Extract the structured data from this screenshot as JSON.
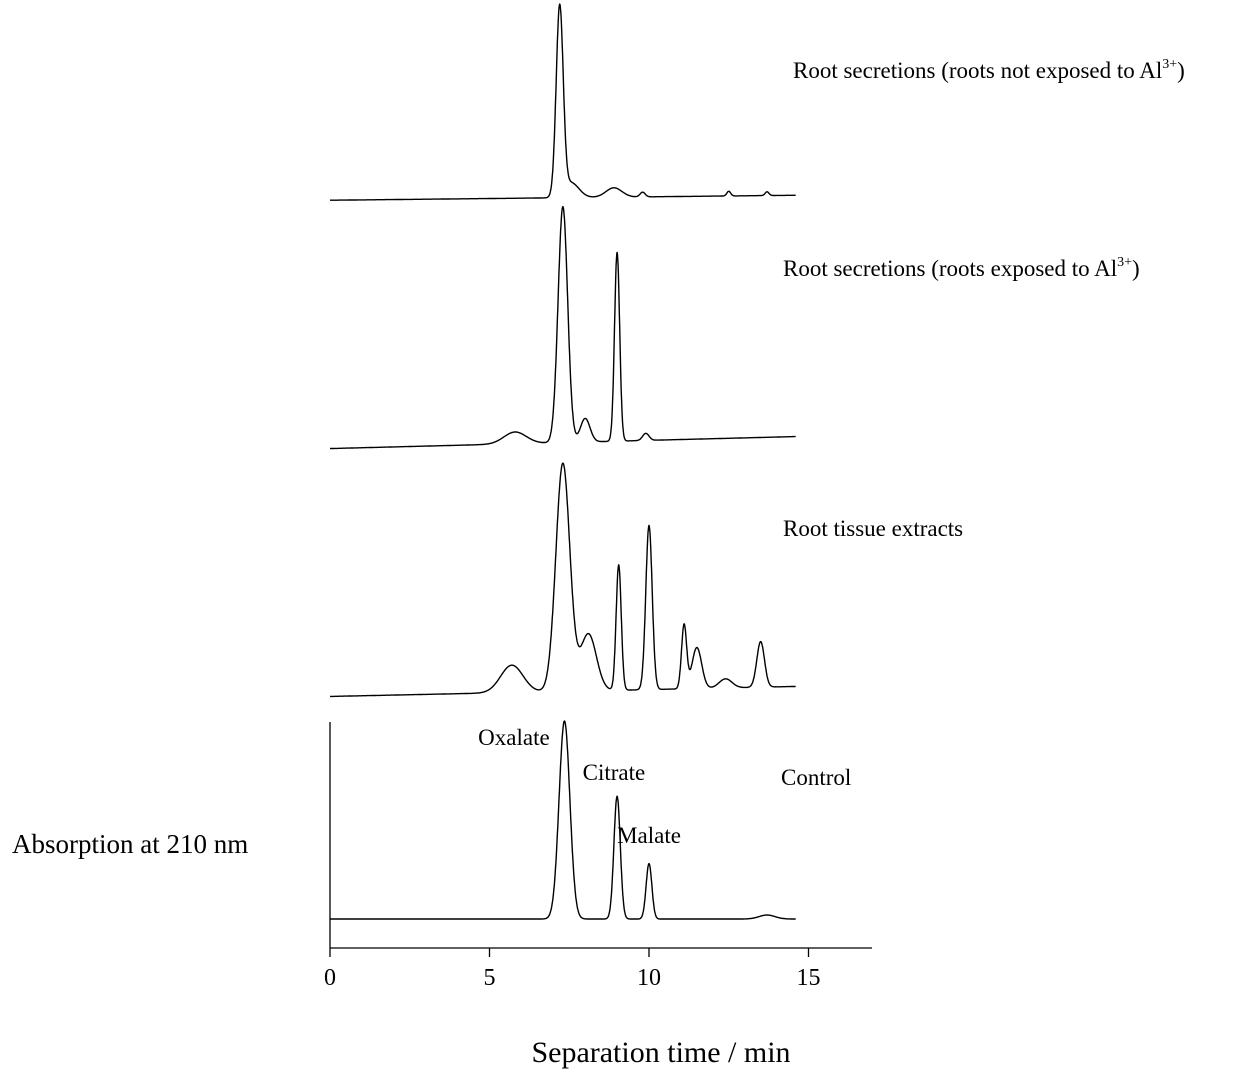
{
  "chart_data": {
    "type": "line",
    "xlabel": "Separation time / min",
    "ylabel": "Absorption at 210 nm",
    "xlim": [
      0,
      17
    ],
    "x_ticks": [
      "0",
      "5",
      "10",
      "15"
    ],
    "grid": false,
    "series": [
      {
        "name": "Root secretions (roots not exposed to Al3+)",
        "label_main": "Root secretions (roots not exposed to Al",
        "label_sup": "3+",
        "label_tail": ")",
        "baseline": 0.02,
        "peaks": [
          {
            "x": 7.2,
            "height": 1.0,
            "width": 0.11
          },
          {
            "x": 7.55,
            "height": 0.08,
            "width": 0.25
          },
          {
            "x": 8.9,
            "height": 0.05,
            "width": 0.25
          },
          {
            "x": 9.8,
            "height": 0.025,
            "width": 0.08
          },
          {
            "x": 12.5,
            "height": 0.025,
            "width": 0.06
          },
          {
            "x": 13.7,
            "height": 0.02,
            "width": 0.06
          }
        ]
      },
      {
        "name": "Root secretions (roots exposed to Al3+)",
        "label_main": "Root secretions (roots exposed to Al",
        "label_sup": "3+",
        "label_tail": ")",
        "baseline": 0.04,
        "peaks": [
          {
            "x": 5.8,
            "height": 0.05,
            "width": 0.35
          },
          {
            "x": 7.3,
            "height": 1.0,
            "width": 0.15
          },
          {
            "x": 8.0,
            "height": 0.1,
            "width": 0.15
          },
          {
            "x": 9.0,
            "height": 0.8,
            "width": 0.08
          },
          {
            "x": 9.9,
            "height": 0.03,
            "width": 0.1
          }
        ]
      },
      {
        "name": "Root tissue extracts",
        "label_main": "Root tissue extracts",
        "label_sup": "",
        "label_tail": "",
        "baseline": 0.02,
        "peaks": [
          {
            "x": 5.7,
            "height": 0.12,
            "width": 0.35
          },
          {
            "x": 7.3,
            "height": 1.0,
            "width": 0.22
          },
          {
            "x": 8.1,
            "height": 0.25,
            "width": 0.25
          },
          {
            "x": 9.05,
            "height": 0.55,
            "width": 0.08
          },
          {
            "x": 10.0,
            "height": 0.72,
            "width": 0.1
          },
          {
            "x": 11.1,
            "height": 0.28,
            "width": 0.08
          },
          {
            "x": 11.5,
            "height": 0.18,
            "width": 0.15
          },
          {
            "x": 12.4,
            "height": 0.04,
            "width": 0.2
          },
          {
            "x": 13.5,
            "height": 0.2,
            "width": 0.12
          }
        ]
      },
      {
        "name": "Control",
        "label_main": "Control",
        "label_sup": "",
        "label_tail": "",
        "baseline": 0.0,
        "peaks": [
          {
            "x": 7.35,
            "height": 1.0,
            "width": 0.17
          },
          {
            "x": 9.0,
            "height": 0.62,
            "width": 0.1
          },
          {
            "x": 10.0,
            "height": 0.28,
            "width": 0.09
          },
          {
            "x": 13.7,
            "height": 0.02,
            "width": 0.25
          }
        ],
        "annotations": [
          {
            "text": "Oxalate",
            "x": 7.2
          },
          {
            "text": "Citrate",
            "x": 8.9
          },
          {
            "text": "Malate",
            "x": 10.0
          }
        ]
      }
    ]
  }
}
